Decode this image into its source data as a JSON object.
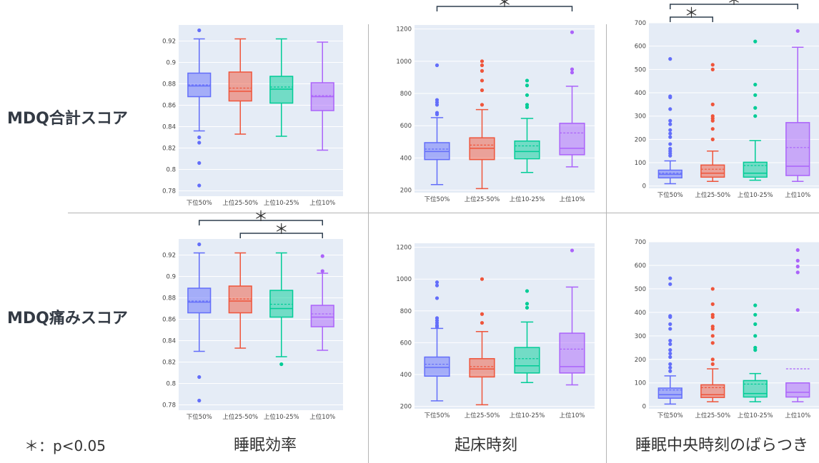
{
  "row_labels": [
    "MDQ合計スコア",
    "MDQ痛みスコア"
  ],
  "column_labels": [
    "睡眠効率",
    "起床時刻",
    "睡眠中央時刻のばらつき"
  ],
  "legend_note": "＊：p<0.05",
  "colors": {
    "g1": "#636efa",
    "g2": "#ef553b",
    "g3": "#00cc96",
    "g4": "#ab63fa",
    "plot_bg": "#e5ecf6",
    "bracket": "#2f3f4f"
  },
  "chart_data": [
    {
      "type": "box",
      "row": 0,
      "col": 0,
      "categories": [
        "下位50%",
        "上位25-50%",
        "上位10-25%",
        "上位10%"
      ],
      "ylim": [
        0.775,
        0.935
      ],
      "yticks": [
        0.78,
        0.8,
        0.82,
        0.84,
        0.86,
        0.88,
        0.9,
        0.92
      ],
      "yticklabels": [
        "0.78",
        "0.8",
        "0.82",
        "0.84",
        "0.86",
        "0.88",
        "0.9",
        "0.92"
      ],
      "boxes": [
        {
          "q1": 0.868,
          "median": 0.878,
          "q3": 0.89,
          "mean": 0.879,
          "lower": 0.836,
          "upper": 0.922,
          "outliers": [
            0.93,
            0.83,
            0.825,
            0.806,
            0.785
          ]
        },
        {
          "q1": 0.864,
          "median": 0.873,
          "q3": 0.891,
          "mean": 0.876,
          "lower": 0.833,
          "upper": 0.922,
          "outliers": []
        },
        {
          "q1": 0.862,
          "median": 0.875,
          "q3": 0.887,
          "mean": 0.877,
          "lower": 0.831,
          "upper": 0.922,
          "outliers": []
        },
        {
          "q1": 0.855,
          "median": 0.868,
          "q3": 0.881,
          "mean": 0.869,
          "lower": 0.818,
          "upper": 0.919,
          "outliers": []
        }
      ],
      "brackets": []
    },
    {
      "type": "box",
      "row": 0,
      "col": 1,
      "categories": [
        "下位50%",
        "上位25-50%",
        "上位10-25%",
        "上位10%"
      ],
      "ylim": [
        185,
        1225
      ],
      "yticks": [
        200,
        400,
        600,
        800,
        1000,
        1200
      ],
      "yticklabels": [
        "200",
        "400",
        "600",
        "800",
        "1000",
        "1200"
      ],
      "boxes": [
        {
          "q1": 390,
          "median": 440,
          "q3": 495,
          "mean": 455,
          "lower": 235,
          "upper": 650,
          "outliers": [
            975,
            760,
            745,
            730,
            680,
            670
          ]
        },
        {
          "q1": 390,
          "median": 460,
          "q3": 525,
          "mean": 480,
          "lower": 210,
          "upper": 700,
          "outliers": [
            1000,
            975,
            940,
            880,
            820,
            730
          ]
        },
        {
          "q1": 395,
          "median": 440,
          "q3": 505,
          "mean": 475,
          "lower": 310,
          "upper": 645,
          "outliers": [
            880,
            850,
            790,
            730,
            715
          ]
        },
        {
          "q1": 420,
          "median": 460,
          "q3": 615,
          "mean": 555,
          "lower": 345,
          "upper": 845,
          "outliers": [
            1180,
            950,
            930
          ]
        }
      ],
      "brackets": [
        {
          "from": 0,
          "to": 3,
          "label": "＊",
          "level": 0
        }
      ]
    },
    {
      "type": "box",
      "row": 0,
      "col": 2,
      "categories": [
        "下位50%",
        "上位25-50%",
        "上位10-25%",
        "上位10%"
      ],
      "ylim": [
        -10,
        700
      ],
      "yticks": [
        0,
        100,
        200,
        300,
        400,
        500,
        600,
        700
      ],
      "yticklabels": [
        "0",
        "100",
        "200",
        "300",
        "400",
        "500",
        "600",
        "700"
      ],
      "boxes": [
        {
          "q1": 35,
          "median": 50,
          "q3": 68,
          "mean": 55,
          "lower": 10,
          "upper": 108,
          "outliers": [
            545,
            385,
            380,
            330,
            280,
            265,
            240,
            225,
            210,
            180,
            160,
            150,
            140,
            130
          ]
        },
        {
          "q1": 38,
          "median": 55,
          "q3": 90,
          "mean": 72,
          "lower": 20,
          "upper": 150,
          "outliers": [
            520,
            500,
            350,
            300,
            290,
            280,
            245,
            200
          ]
        },
        {
          "q1": 38,
          "median": 55,
          "q3": 102,
          "mean": 88,
          "lower": 25,
          "upper": 195,
          "outliers": [
            620,
            435,
            390,
            335,
            300
          ]
        },
        {
          "q1": 45,
          "median": 85,
          "q3": 272,
          "mean": 165,
          "lower": 20,
          "upper": 595,
          "outliers": [
            665
          ]
        }
      ],
      "brackets": [
        {
          "from": 0,
          "to": 3,
          "label": "＊",
          "level": 0
        },
        {
          "from": 0,
          "to": 1,
          "label": "＊",
          "level": 1
        }
      ]
    },
    {
      "type": "box",
      "row": 1,
      "col": 0,
      "categories": [
        "下位50%",
        "上位25-50%",
        "上位10-25%",
        "上位10%"
      ],
      "ylim": [
        0.775,
        0.935
      ],
      "yticks": [
        0.78,
        0.8,
        0.82,
        0.84,
        0.86,
        0.88,
        0.9,
        0.92
      ],
      "yticklabels": [
        "0.78",
        "0.8",
        "0.82",
        "0.84",
        "0.86",
        "0.88",
        "0.9",
        "0.92"
      ],
      "boxes": [
        {
          "q1": 0.866,
          "median": 0.876,
          "q3": 0.889,
          "mean": 0.877,
          "lower": 0.83,
          "upper": 0.922,
          "outliers": [
            0.93,
            0.806,
            0.784
          ]
        },
        {
          "q1": 0.866,
          "median": 0.877,
          "q3": 0.891,
          "mean": 0.879,
          "lower": 0.833,
          "upper": 0.922,
          "outliers": []
        },
        {
          "q1": 0.862,
          "median": 0.87,
          "q3": 0.887,
          "mean": 0.874,
          "lower": 0.825,
          "upper": 0.922,
          "outliers": [
            0.818
          ]
        },
        {
          "q1": 0.853,
          "median": 0.862,
          "q3": 0.873,
          "mean": 0.865,
          "lower": 0.831,
          "upper": 0.903,
          "outliers": [
            0.919,
            0.905
          ]
        }
      ],
      "brackets": [
        {
          "from": 0,
          "to": 3,
          "label": "＊",
          "level": 0
        },
        {
          "from": 1,
          "to": 3,
          "label": "＊",
          "level": 1
        }
      ]
    },
    {
      "type": "box",
      "row": 1,
      "col": 1,
      "categories": [
        "下位50%",
        "上位25-50%",
        "上位10-25%",
        "上位10%"
      ],
      "ylim": [
        185,
        1225
      ],
      "yticks": [
        200,
        400,
        600,
        800,
        1000,
        1200
      ],
      "yticklabels": [
        "200",
        "400",
        "600",
        "800",
        "1000",
        "1200"
      ],
      "boxes": [
        {
          "q1": 390,
          "median": 445,
          "q3": 510,
          "mean": 465,
          "lower": 235,
          "upper": 690,
          "outliers": [
            980,
            960,
            880,
            755,
            740,
            725,
            710,
            700
          ]
        },
        {
          "q1": 385,
          "median": 435,
          "q3": 500,
          "mean": 450,
          "lower": 210,
          "upper": 670,
          "outliers": [
            1000,
            780,
            725
          ]
        },
        {
          "q1": 410,
          "median": 455,
          "q3": 570,
          "mean": 500,
          "lower": 350,
          "upper": 730,
          "outliers": [
            925,
            845,
            820
          ]
        },
        {
          "q1": 410,
          "median": 450,
          "q3": 660,
          "mean": 560,
          "lower": 335,
          "upper": 950,
          "outliers": [
            1180
          ]
        }
      ],
      "brackets": []
    },
    {
      "type": "box",
      "row": 1,
      "col": 2,
      "categories": [
        "下位50%",
        "上位25-50%",
        "上位10-25%",
        "上位10%"
      ],
      "ylim": [
        -10,
        700
      ],
      "yticks": [
        0,
        100,
        200,
        300,
        400,
        500,
        600,
        700
      ],
      "yticklabels": [
        "0",
        "100",
        "200",
        "300",
        "400",
        "500",
        "600",
        "700"
      ],
      "boxes": [
        {
          "q1": 35,
          "median": 50,
          "q3": 78,
          "mean": 70,
          "lower": 10,
          "upper": 130,
          "outliers": [
            545,
            520,
            385,
            380,
            350,
            330,
            280,
            265,
            240,
            225,
            210,
            180,
            165,
            150
          ]
        },
        {
          "q1": 38,
          "median": 50,
          "q3": 92,
          "mean": 80,
          "lower": 20,
          "upper": 160,
          "outliers": [
            500,
            435,
            390,
            380,
            340,
            330,
            300,
            270,
            200,
            180
          ]
        },
        {
          "q1": 40,
          "median": 55,
          "q3": 110,
          "mean": 95,
          "lower": 20,
          "upper": 140,
          "outliers": [
            430,
            390,
            350,
            300,
            250,
            240
          ]
        },
        {
          "q1": 40,
          "median": 60,
          "q3": 100,
          "mean": 160,
          "lower": 20,
          "upper": 100,
          "outliers": [
            665,
            620,
            595,
            570,
            410
          ]
        }
      ],
      "brackets": []
    }
  ]
}
